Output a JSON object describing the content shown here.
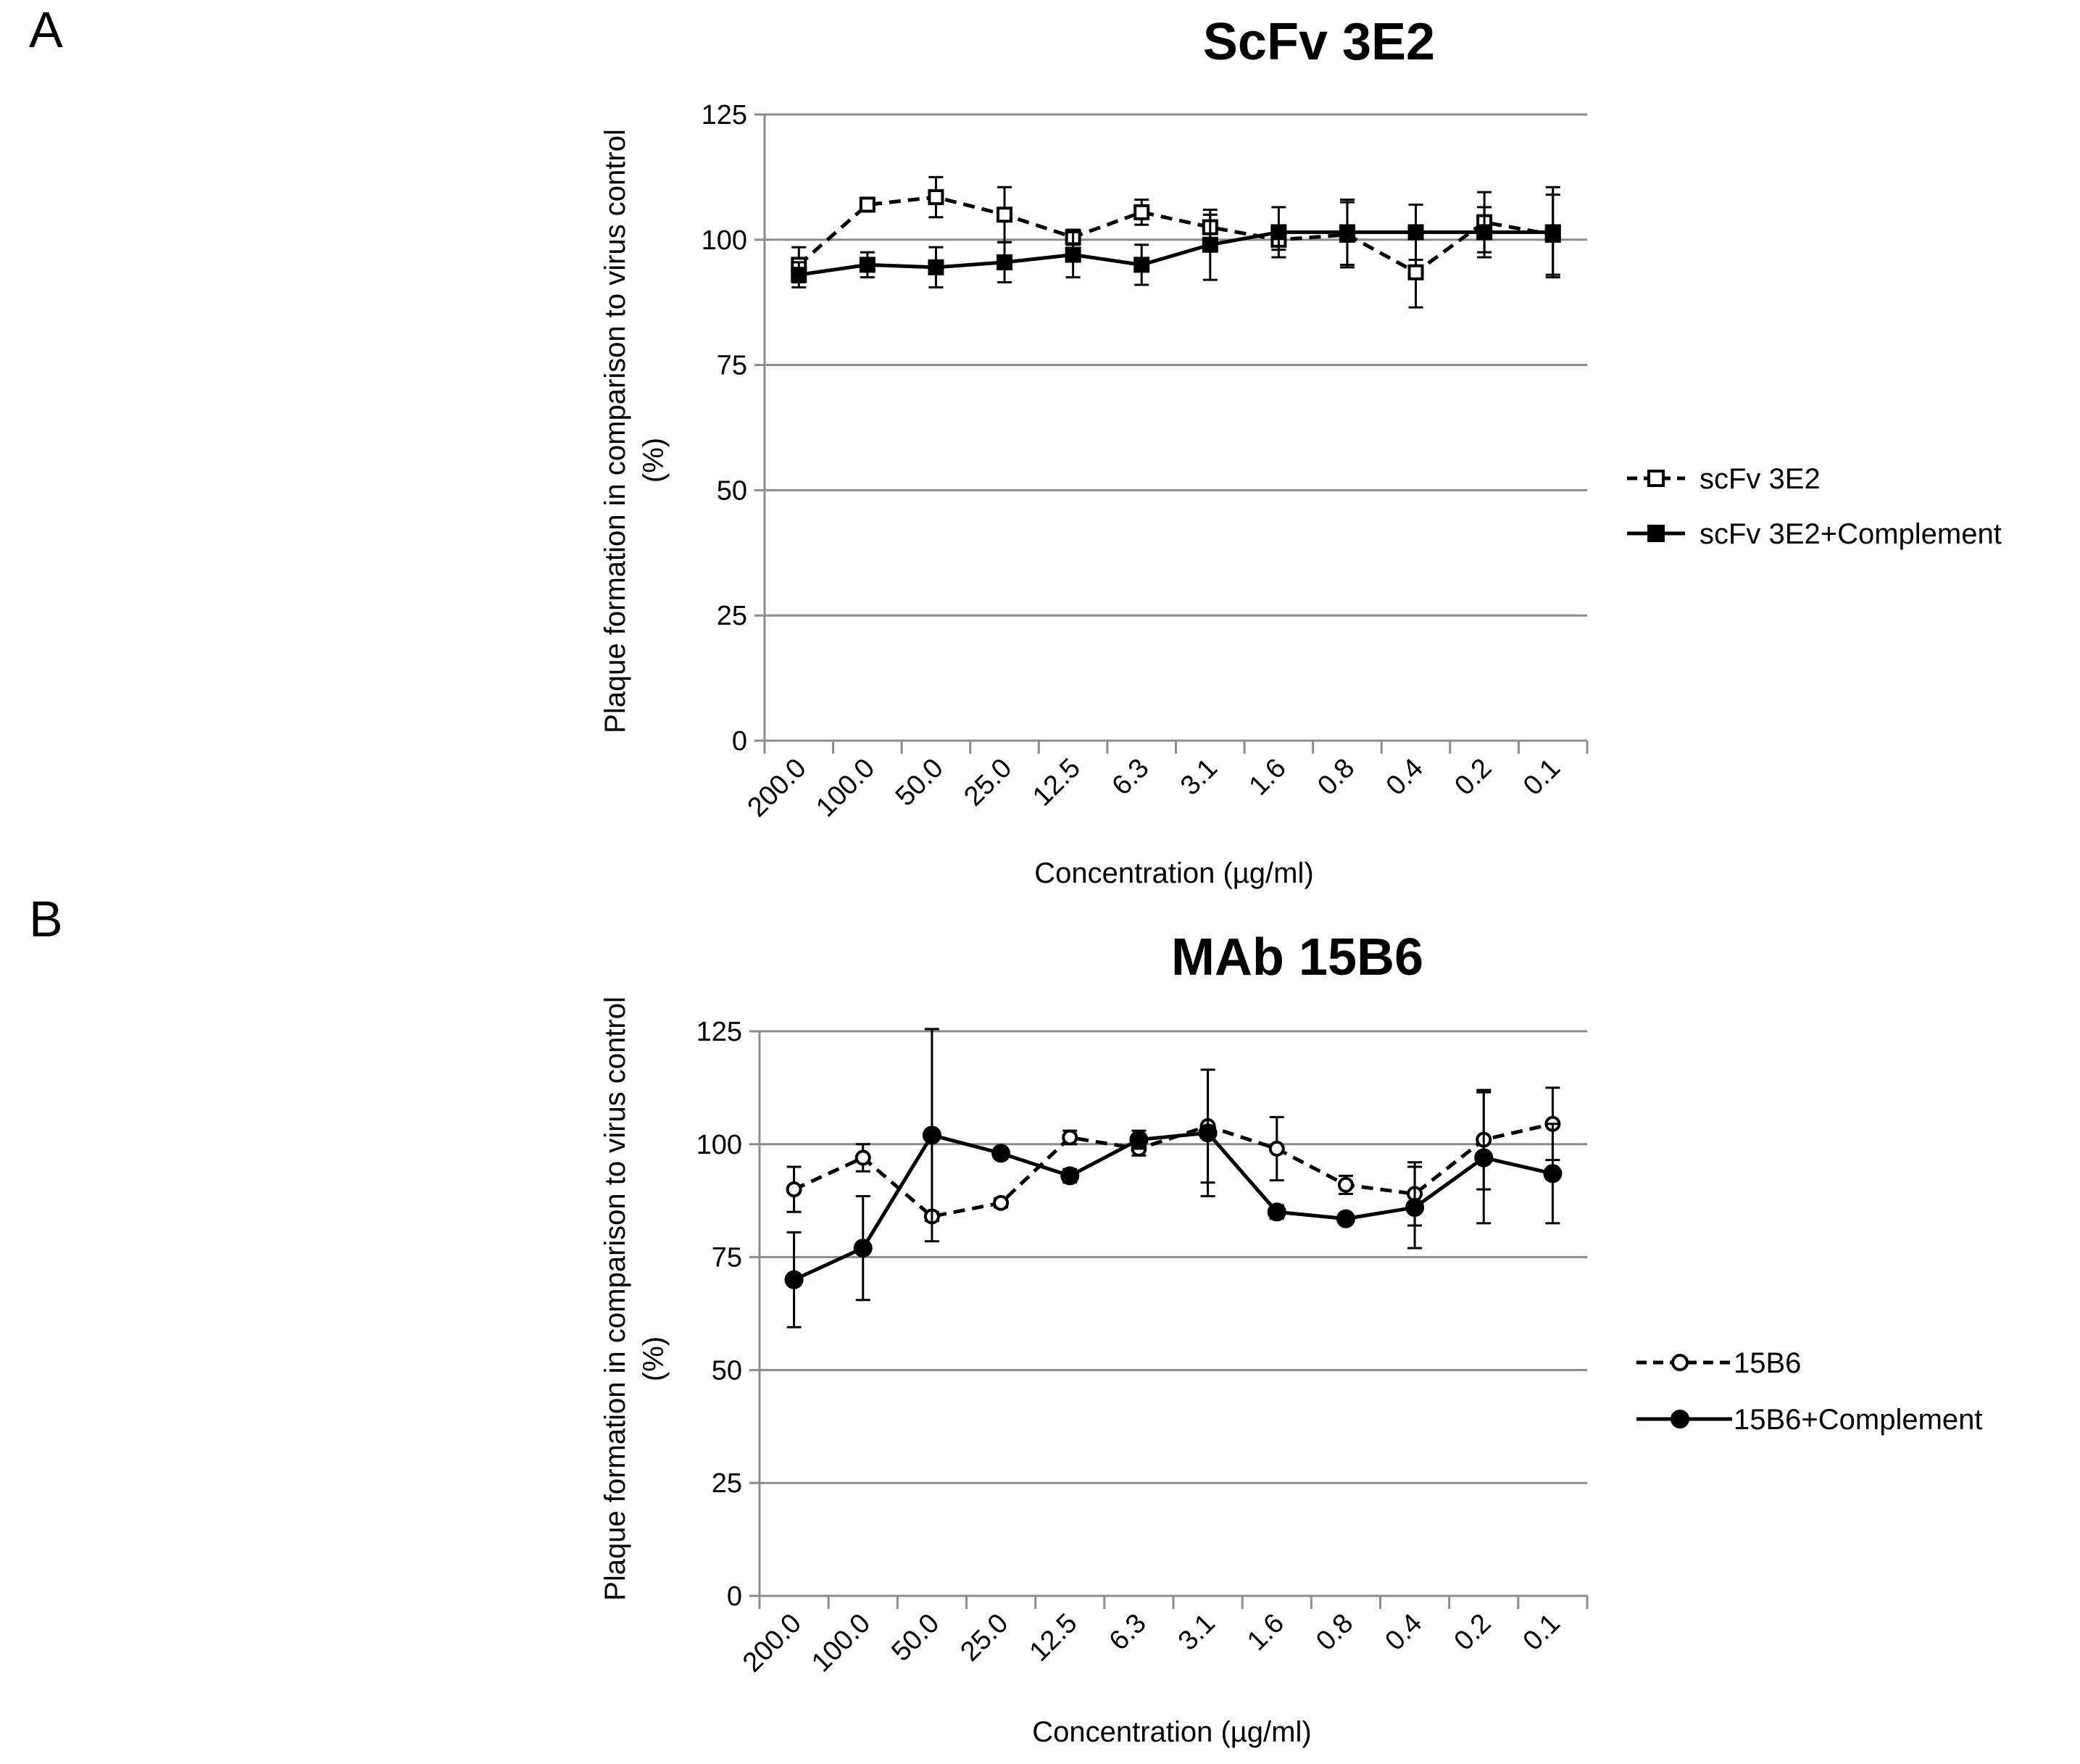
{
  "panels": [
    {
      "letter": "A",
      "chart_data": {
        "type": "line",
        "title": "ScFv 3E2",
        "xlabel": "Concentration (µg/ml)",
        "ylabel_lines": [
          "Plaque formation in comparison to virus control",
          "(%)"
        ],
        "categories": [
          "200.0",
          "100.0",
          "50.0",
          "25.0",
          "12.5",
          "6.3",
          "3.1",
          "1.6",
          "0.8",
          "0.4",
          "0.2",
          "0.1"
        ],
        "ylim": [
          0,
          125
        ],
        "yticks": [
          0,
          25,
          50,
          75,
          100,
          125
        ],
        "grid": true,
        "legend_position": "right",
        "series": [
          {
            "name": "scFv 3E2",
            "line_style": "dashed",
            "marker": "open-square",
            "values": [
              95,
              107,
              108.5,
              105,
              100.5,
              105.5,
              102.5,
              100,
              101,
              93.5,
              103.5,
              101
            ],
            "errors": [
              3.5,
              1,
              4,
              5.5,
              1.5,
              2.5,
              2.5,
              2,
              6.5,
              7,
              6,
              8
            ]
          },
          {
            "name": "scFv 3E2+Complement",
            "line_style": "solid",
            "marker": "filled-square",
            "values": [
              93,
              95,
              94.5,
              95.5,
              97,
              95,
              99,
              101.5,
              101.5,
              101.5,
              101.5,
              101.5
            ],
            "errors": [
              2.5,
              2.5,
              4,
              4,
              4.5,
              4,
              7,
              5,
              6.5,
              5.5,
              5,
              9
            ]
          }
        ]
      }
    },
    {
      "letter": "B",
      "chart_data": {
        "type": "line",
        "title": "MAb 15B6",
        "xlabel": "Concentration (µg/ml)",
        "ylabel_lines": [
          "Plaque formation in comparison to virus control",
          "(%)"
        ],
        "categories": [
          "200.0",
          "100.0",
          "50.0",
          "25.0",
          "12.5",
          "6.3",
          "3.1",
          "1.6",
          "0.8",
          "0.4",
          "0.2",
          "0.1"
        ],
        "ylim": [
          0,
          125
        ],
        "yticks": [
          0,
          25,
          50,
          75,
          100,
          125
        ],
        "grid": true,
        "legend_position": "right",
        "series": [
          {
            "name": "15B6",
            "line_style": "dashed",
            "marker": "open-circle",
            "values": [
              90,
              97,
              84,
              87,
              101.5,
              99,
              104,
              99,
              91,
              89,
              101,
              104.5
            ],
            "errors": [
              5,
              3,
              1,
              1,
              1.5,
              1.5,
              12.5,
              7,
              2,
              7,
              11,
              8
            ]
          },
          {
            "name": "15B6+Complement",
            "line_style": "solid",
            "marker": "filled-circle",
            "values": [
              70,
              77,
              102,
              98,
              93,
              101,
              102.5,
              85,
              83.5,
              86,
              97,
              93.5
            ],
            "errors": [
              10.5,
              11.5,
              23.5,
              1,
              1.5,
              2,
              14,
              1.5,
              1,
              9,
              14.5,
              11
            ]
          }
        ]
      }
    }
  ]
}
